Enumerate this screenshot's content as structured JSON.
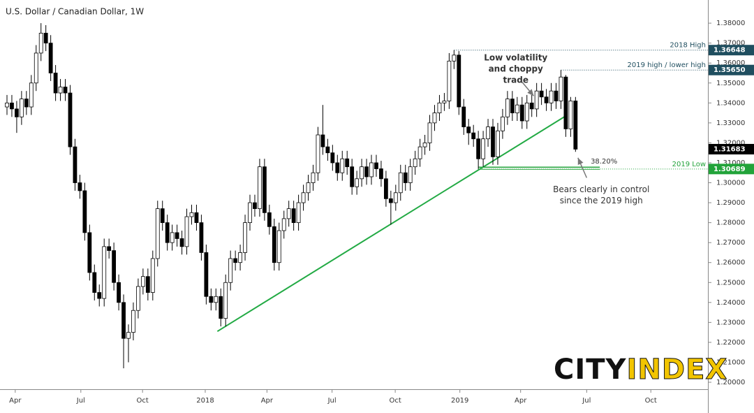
{
  "chart_data": {
    "type": "candlestick",
    "title": "U.S. Dollar / Canadian Dollar, 1W",
    "up_color": "#ffffff",
    "down_color": "#000000",
    "wick_color": "#000000",
    "open": [
      1.338,
      1.34,
      1.337,
      1.333,
      1.342,
      1.338,
      1.35,
      1.365,
      1.375,
      1.37,
      1.355,
      1.345,
      1.348,
      1.345,
      1.318,
      1.3,
      1.296,
      1.275,
      1.255,
      1.245,
      1.242,
      1.268,
      1.266,
      1.25,
      1.24,
      1.222,
      1.225,
      1.236,
      1.248,
      1.253,
      1.245,
      1.262,
      1.287,
      1.28,
      1.27,
      1.275,
      1.272,
      1.268,
      1.283,
      1.285,
      1.28,
      1.265,
      1.243,
      1.24,
      1.243,
      1.232,
      1.25,
      1.262,
      1.26,
      1.265,
      1.28,
      1.29,
      1.287,
      1.308,
      1.285,
      1.278,
      1.26,
      1.276,
      1.282,
      1.287,
      1.28,
      1.29,
      1.295,
      1.3,
      1.305,
      1.324,
      1.318,
      1.315,
      1.31,
      1.305,
      1.312,
      1.308,
      1.298,
      1.302,
      1.308,
      1.303,
      1.31,
      1.307,
      1.302,
      1.292,
      1.29,
      1.295,
      1.305,
      1.3,
      1.308,
      1.312,
      1.318,
      1.32,
      1.33,
      1.335,
      1.34,
      1.341,
      1.361,
      1.364,
      1.338,
      1.328,
      1.325,
      1.322,
      1.312,
      1.322,
      1.328,
      1.313,
      1.326,
      1.333,
      1.342,
      1.335,
      1.339,
      1.331,
      1.34,
      1.337,
      1.346,
      1.343,
      1.34,
      1.346,
      1.341,
      1.353,
      1.327,
      1.341
    ],
    "high": [
      1.344,
      1.344,
      1.341,
      1.346,
      1.346,
      1.354,
      1.369,
      1.38,
      1.379,
      1.374,
      1.359,
      1.352,
      1.352,
      1.349,
      1.322,
      1.304,
      1.3,
      1.279,
      1.259,
      1.249,
      1.272,
      1.272,
      1.27,
      1.254,
      1.244,
      1.229,
      1.24,
      1.252,
      1.257,
      1.257,
      1.266,
      1.291,
      1.291,
      1.284,
      1.279,
      1.279,
      1.276,
      1.287,
      1.289,
      1.289,
      1.284,
      1.269,
      1.247,
      1.247,
      1.247,
      1.254,
      1.266,
      1.266,
      1.269,
      1.284,
      1.294,
      1.294,
      1.312,
      1.312,
      1.289,
      1.282,
      1.28,
      1.286,
      1.291,
      1.291,
      1.294,
      1.299,
      1.304,
      1.309,
      1.328,
      1.339,
      1.322,
      1.319,
      1.314,
      1.316,
      1.316,
      1.312,
      1.306,
      1.312,
      1.312,
      1.314,
      1.314,
      1.311,
      1.306,
      1.296,
      1.299,
      1.309,
      1.309,
      1.312,
      1.316,
      1.322,
      1.324,
      1.334,
      1.339,
      1.344,
      1.345,
      1.365,
      1.36648,
      1.366,
      1.342,
      1.332,
      1.329,
      1.326,
      1.326,
      1.332,
      1.332,
      1.33,
      1.337,
      1.346,
      1.346,
      1.343,
      1.343,
      1.344,
      1.344,
      1.35,
      1.35,
      1.347,
      1.35,
      1.35,
      1.3565,
      1.354,
      1.343,
      1.343
    ],
    "low": [
      1.334,
      1.333,
      1.325,
      1.329,
      1.334,
      1.334,
      1.346,
      1.361,
      1.366,
      1.351,
      1.341,
      1.341,
      1.341,
      1.314,
      1.296,
      1.292,
      1.271,
      1.251,
      1.241,
      1.238,
      1.238,
      1.262,
      1.246,
      1.236,
      1.207,
      1.21,
      1.221,
      1.232,
      1.244,
      1.241,
      1.241,
      1.258,
      1.276,
      1.266,
      1.266,
      1.268,
      1.264,
      1.264,
      1.279,
      1.276,
      1.261,
      1.239,
      1.236,
      1.236,
      1.228,
      1.228,
      1.246,
      1.256,
      1.256,
      1.261,
      1.276,
      1.283,
      1.283,
      1.281,
      1.274,
      1.256,
      1.256,
      1.272,
      1.278,
      1.276,
      1.276,
      1.286,
      1.291,
      1.296,
      1.301,
      1.314,
      1.311,
      1.306,
      1.301,
      1.301,
      1.304,
      1.294,
      1.294,
      1.298,
      1.299,
      1.299,
      1.303,
      1.298,
      1.288,
      1.279,
      1.286,
      1.291,
      1.296,
      1.296,
      1.304,
      1.308,
      1.314,
      1.316,
      1.326,
      1.331,
      1.336,
      1.337,
      1.357,
      1.334,
      1.324,
      1.319,
      1.318,
      1.30689,
      1.308,
      1.318,
      1.309,
      1.309,
      1.322,
      1.329,
      1.331,
      1.331,
      1.327,
      1.327,
      1.333,
      1.333,
      1.339,
      1.336,
      1.336,
      1.337,
      1.337,
      1.323,
      1.323,
      1.3155
    ],
    "close": [
      1.34,
      1.337,
      1.333,
      1.342,
      1.338,
      1.35,
      1.365,
      1.375,
      1.37,
      1.355,
      1.345,
      1.348,
      1.345,
      1.318,
      1.3,
      1.296,
      1.275,
      1.255,
      1.245,
      1.242,
      1.268,
      1.266,
      1.25,
      1.24,
      1.222,
      1.225,
      1.236,
      1.248,
      1.253,
      1.245,
      1.262,
      1.287,
      1.28,
      1.27,
      1.275,
      1.272,
      1.268,
      1.283,
      1.285,
      1.28,
      1.265,
      1.243,
      1.24,
      1.243,
      1.232,
      1.25,
      1.262,
      1.26,
      1.265,
      1.28,
      1.29,
      1.287,
      1.308,
      1.285,
      1.278,
      1.26,
      1.276,
      1.282,
      1.287,
      1.28,
      1.29,
      1.295,
      1.3,
      1.305,
      1.324,
      1.318,
      1.315,
      1.31,
      1.305,
      1.312,
      1.308,
      1.298,
      1.302,
      1.308,
      1.303,
      1.31,
      1.307,
      1.302,
      1.292,
      1.29,
      1.295,
      1.305,
      1.3,
      1.308,
      1.312,
      1.318,
      1.32,
      1.33,
      1.335,
      1.34,
      1.341,
      1.361,
      1.364,
      1.338,
      1.328,
      1.325,
      1.322,
      1.312,
      1.322,
      1.328,
      1.313,
      1.326,
      1.333,
      1.342,
      1.335,
      1.339,
      1.331,
      1.34,
      1.337,
      1.346,
      1.343,
      1.34,
      1.346,
      1.341,
      1.353,
      1.327,
      1.341,
      1.31683
    ],
    "xlim": [
      -1.437,
      144.25
    ],
    "xticks": [
      {
        "value": 1.7,
        "label": "Apr"
      },
      {
        "value": 15.2,
        "label": "Jul"
      },
      {
        "value": 27.9,
        "label": "Oct"
      },
      {
        "value": 40.8,
        "label": "2018"
      },
      {
        "value": 53.5,
        "label": "Apr"
      },
      {
        "value": 66.9,
        "label": "Jul"
      },
      {
        "value": 79.9,
        "label": "Oct"
      },
      {
        "value": 93.2,
        "label": "2019"
      },
      {
        "value": 105.7,
        "label": "Apr"
      },
      {
        "value": 119.3,
        "label": "Jul"
      },
      {
        "value": 132.5,
        "label": "Oct"
      }
    ],
    "ylim": [
      1.1965,
      1.3916
    ],
    "yticks": [
      {
        "value": 1.2,
        "label": "1.20000"
      },
      {
        "value": 1.21,
        "label": "1.21000"
      },
      {
        "value": 1.22,
        "label": "1.22000"
      },
      {
        "value": 1.23,
        "label": "1.23000"
      },
      {
        "value": 1.24,
        "label": "1.24000"
      },
      {
        "value": 1.25,
        "label": "1.25000"
      },
      {
        "value": 1.26,
        "label": "1.26000"
      },
      {
        "value": 1.27,
        "label": "1.27000"
      },
      {
        "value": 1.28,
        "label": "1.28000"
      },
      {
        "value": 1.29,
        "label": "1.29000"
      },
      {
        "value": 1.3,
        "label": "1.30000"
      },
      {
        "value": 1.31,
        "label": "1.31000"
      },
      {
        "value": 1.32,
        "label": "1.32000"
      },
      {
        "value": 1.33,
        "label": "1.33000"
      },
      {
        "value": 1.34,
        "label": "1.34000"
      },
      {
        "value": 1.35,
        "label": "1.35000"
      },
      {
        "value": 1.36,
        "label": "1.36000"
      },
      {
        "value": 1.37,
        "label": "1.37000"
      },
      {
        "value": 1.38,
        "label": "1.38000"
      }
    ],
    "levels": [
      {
        "name": "2018 High",
        "value": 1.36648,
        "label": "1.36648",
        "from": 92,
        "color": "#1f4e5f"
      },
      {
        "name": "2019 high / lower high",
        "value": 1.3565,
        "label": "1.35650",
        "from": 114,
        "color": "#1f4e5f"
      },
      {
        "name": "2019 Low",
        "value": 1.30689,
        "label": "1.30689",
        "from": 97,
        "color": "#22a33a"
      }
    ],
    "last_price_color": "#000000",
    "fib": {
      "label": "38.20%",
      "value": 1.3078,
      "from": 97,
      "to": 122,
      "color": "#22a33a"
    },
    "trendline": {
      "color": "#22aa44",
      "points": [
        [
          43.3,
          1.2255
        ],
        [
          115,
          1.3335
        ]
      ]
    },
    "annotations": [
      {
        "lines": [
          "Low volatility",
          "and choppy",
          "trade"
        ],
        "bold": true,
        "at": [
          104.7,
          1.3625
        ],
        "arrow": [
          [
            106,
            1.3505
          ],
          [
            108.4,
            1.3435
          ]
        ]
      },
      {
        "lines": [
          "Bears clearly in control",
          "since the 2019 high"
        ],
        "bold": false,
        "at": [
          122.3,
          1.2965
        ],
        "arrow": [
          [
            119.3,
            1.3025
          ],
          [
            117.5,
            1.3125
          ]
        ]
      }
    ],
    "logo": {
      "left": "CITY",
      "right": "INDEX",
      "left_color": "#111111",
      "right_color": "#f2c500"
    }
  }
}
